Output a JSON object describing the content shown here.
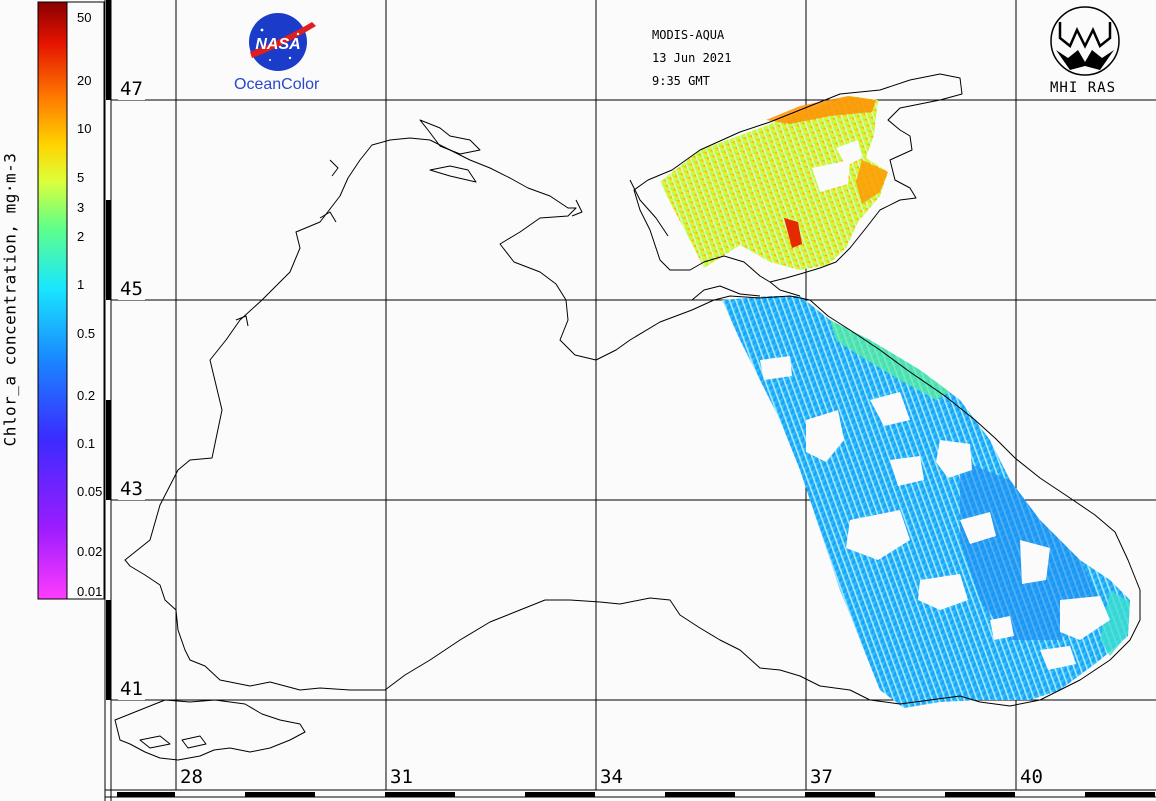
{
  "header": {
    "sensor": "MODIS-AQUA",
    "date": "13 Jun 2021",
    "time": "9:35 GMT"
  },
  "logos": {
    "nasa_caption": "OceanColor",
    "nasa_wordmark": "NASA",
    "mhi_caption": "MHI RAS"
  },
  "colorbar": {
    "title": "Chlor_a concentration, mg·m-3",
    "ticks": [
      "50",
      "20",
      "10",
      "5",
      "3",
      "2",
      "1",
      "0.5",
      "0.2",
      "0.1",
      "0.05",
      "0.02",
      "0.01"
    ],
    "scale": "log",
    "range": [
      0.01,
      50
    ],
    "colors": [
      "#ff3cff",
      "#9b1cff",
      "#3a2cff",
      "#1a86ff",
      "#19e6ff",
      "#5dff8a",
      "#dcff3a",
      "#ffd400",
      "#ff7a00",
      "#e51400",
      "#8a0000"
    ]
  },
  "grid": {
    "latitudes": [
      "47",
      "45",
      "43",
      "41"
    ],
    "longitudes": [
      "28",
      "31",
      "34",
      "37",
      "40"
    ]
  }
}
